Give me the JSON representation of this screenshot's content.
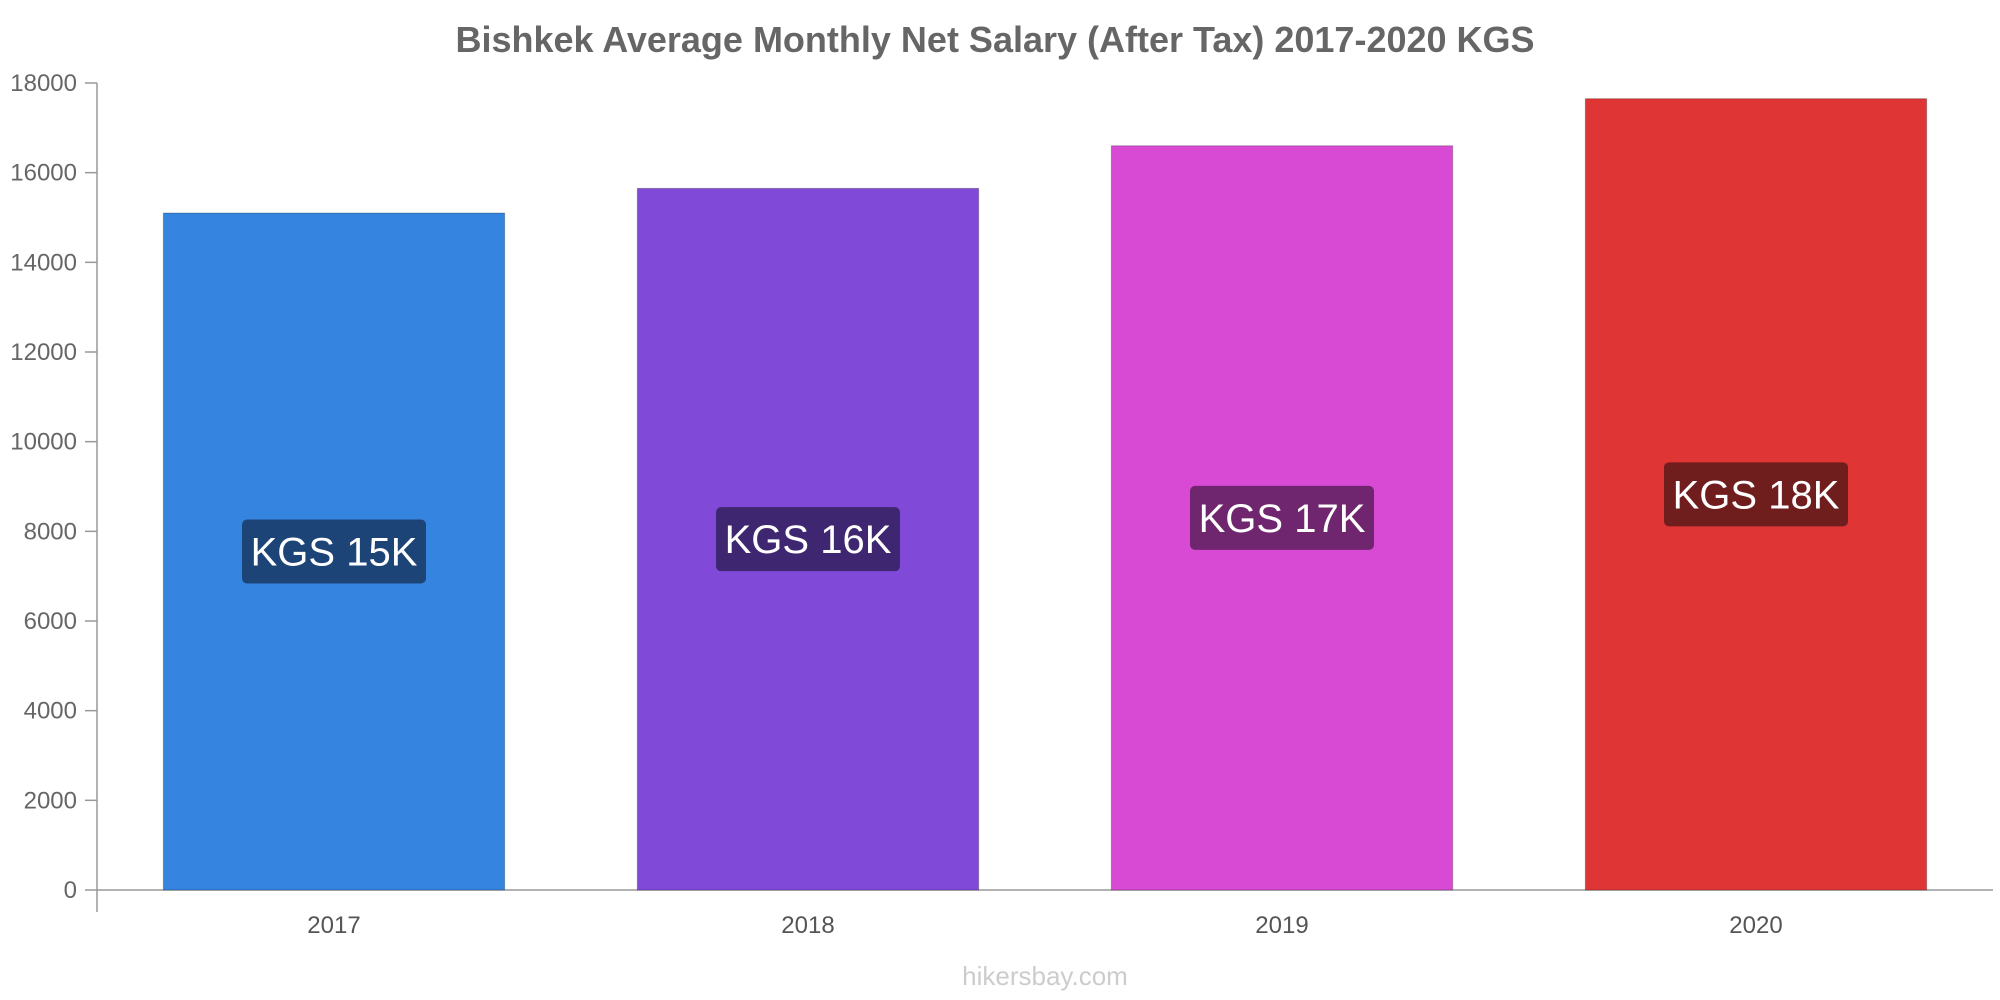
{
  "chart_data": {
    "type": "bar",
    "title": "Bishkek Average Monthly Net Salary (After Tax) 2017-2020 KGS",
    "categories": [
      "2017",
      "2018",
      "2019",
      "2020"
    ],
    "values": [
      15100,
      15650,
      16600,
      17650
    ],
    "bar_labels": [
      "KGS 15K",
      "KGS 16K",
      "KGS 17K",
      "KGS 18K"
    ],
    "bar_colors": [
      "#3584e0",
      "#8049d8",
      "#d849d4",
      "#e03535"
    ],
    "label_bg_colors": [
      "#1d4477",
      "#3f2670",
      "#70266e",
      "#701d1d"
    ],
    "ylim": [
      0,
      18000
    ],
    "yticks": [
      0,
      2000,
      4000,
      6000,
      8000,
      10000,
      12000,
      14000,
      16000,
      18000
    ],
    "grid": false,
    "legend": "none"
  },
  "watermark": "hikersbay.com"
}
